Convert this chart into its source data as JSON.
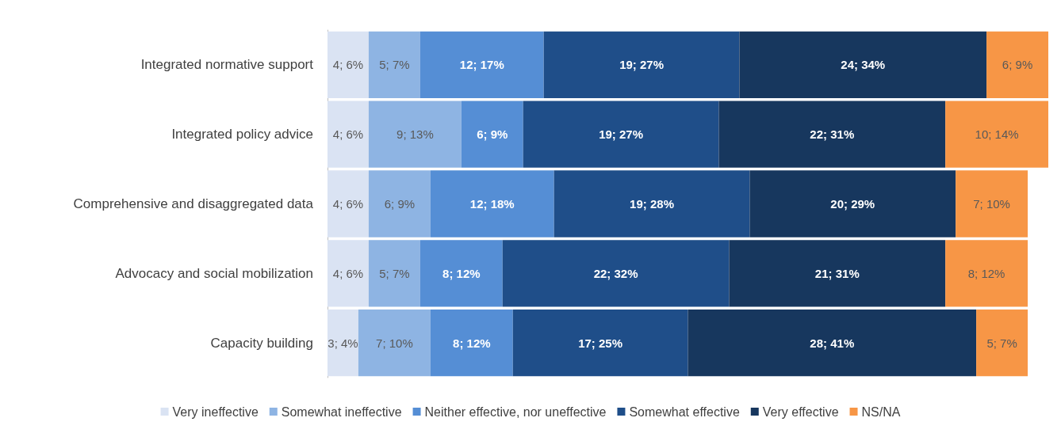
{
  "chart_data": {
    "type": "bar",
    "orientation": "horizontal",
    "stacked": true,
    "legend": "bottom",
    "grid": false,
    "categories": [
      "Integrated normative support",
      "Integrated policy advice",
      "Comprehensive and disaggregated data",
      "Advocacy and social mobilization",
      "Capacity building"
    ],
    "series": [
      {
        "name": "Very ineffective",
        "color": "#dae3f3",
        "values": [
          4,
          4,
          4,
          4,
          3
        ],
        "value_labels": [
          "4; 6%",
          "4; 6%",
          "4; 6%",
          "4; 6%",
          "3; 4%"
        ]
      },
      {
        "name": "Somewhat ineffective",
        "color": "#8eb4e3",
        "values": [
          5,
          9,
          6,
          5,
          7
        ],
        "value_labels": [
          "5; 7%",
          "9; 13%",
          "6; 9%",
          "5; 7%",
          "7; 10%"
        ]
      },
      {
        "name": "Neither effective, nor uneffective",
        "color": "#558ed5",
        "values": [
          12,
          6,
          12,
          8,
          8
        ],
        "value_labels": [
          "12; 17%",
          "6; 9%",
          "12; 18%",
          "8; 12%",
          "8; 12%"
        ]
      },
      {
        "name": "Somewhat effective",
        "color": "#1f4e89",
        "values": [
          19,
          19,
          19,
          22,
          17
        ],
        "value_labels": [
          "19; 27%",
          "19; 27%",
          "19; 28%",
          "22; 32%",
          "17; 25%"
        ]
      },
      {
        "name": "Very effective",
        "color": "#17375e",
        "values": [
          24,
          22,
          20,
          21,
          28
        ],
        "value_labels": [
          "24; 34%",
          "22; 31%",
          "20; 29%",
          "21; 31%",
          "28; 41%"
        ]
      },
      {
        "name": "NS/NA",
        "color": "#f79646",
        "values": [
          6,
          10,
          7,
          8,
          5
        ],
        "value_labels": [
          "6; 9%",
          "10; 14%",
          "7; 10%",
          "8; 12%",
          "5; 7%"
        ]
      }
    ]
  }
}
